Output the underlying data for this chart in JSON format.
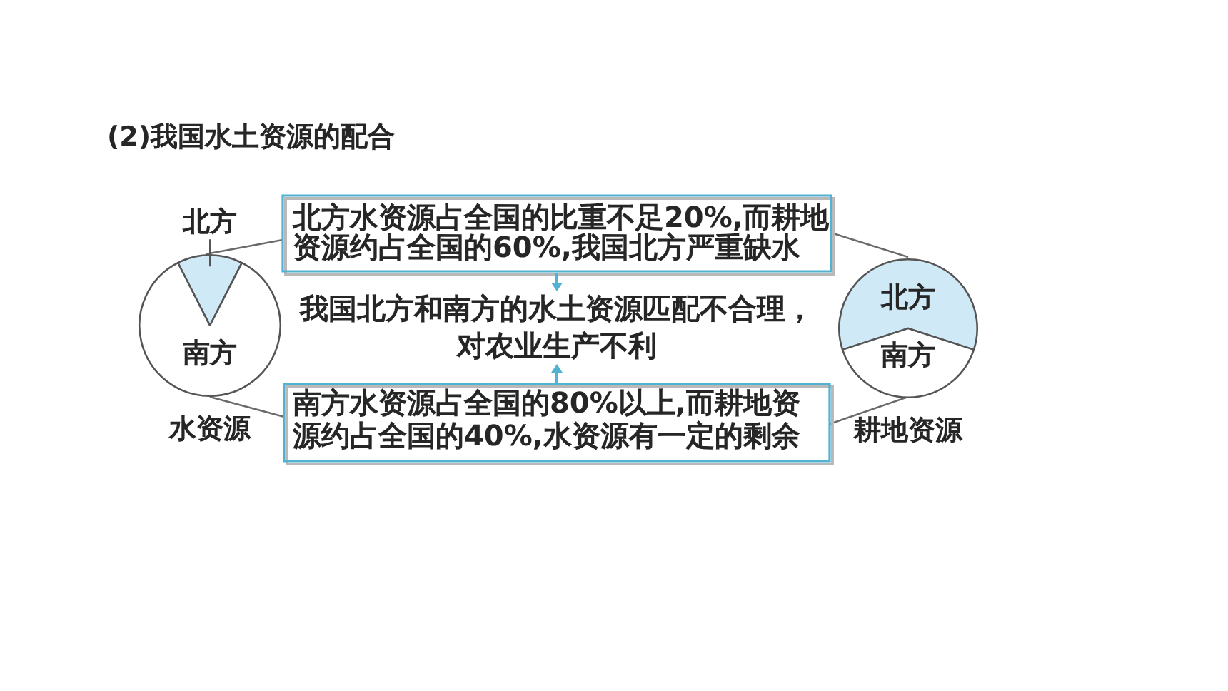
{
  "chart_data": [
    {
      "type": "other",
      "title": "(2)我国水土资源的配合",
      "annotations": [
        "北方水资源占全国的比重不足20%,而耕地资源约占全国的60%,我国北方严重缺水",
        "我国北方和南方的水土资源匹配不合理，对农业生产不利",
        "南方水资源占全国的80%以上,而耕地资源约占全国的40%,水资源有一定的剩余"
      ]
    },
    {
      "type": "pie",
      "title": "水资源",
      "categories": [
        "北方",
        "南方"
      ],
      "values": [
        15,
        85
      ],
      "colors": [
        "#cfe9f6",
        "#ffffff"
      ]
    },
    {
      "type": "pie",
      "title": "耕地资源",
      "categories": [
        "北方",
        "南方"
      ],
      "values": [
        60,
        40
      ],
      "colors": [
        "#cfe9f6",
        "#ffffff"
      ]
    }
  ]
}
